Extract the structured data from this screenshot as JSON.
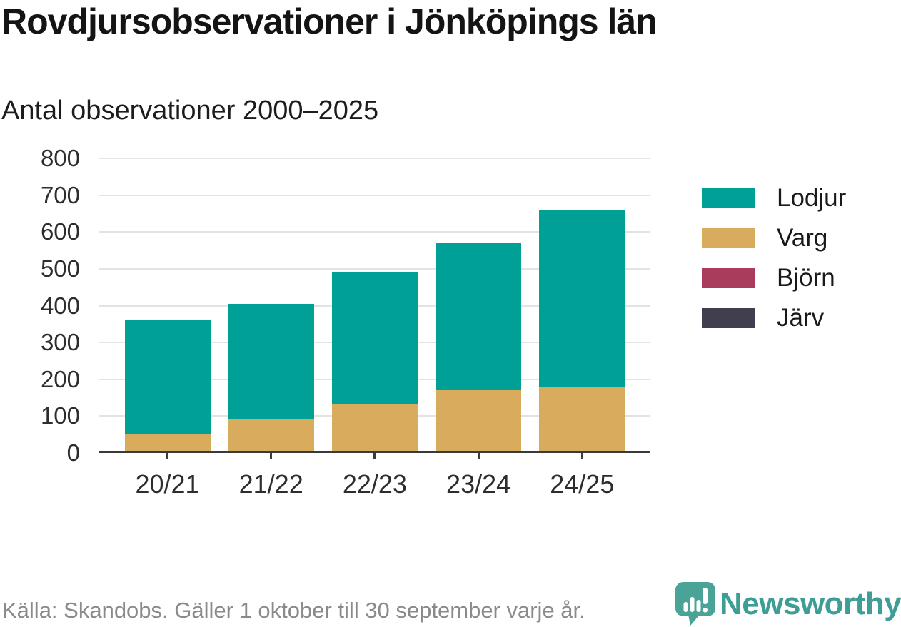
{
  "header": {
    "title": "Rovdjursobservationer i Jönköpings län",
    "subtitle": "Antal observationer 2000–2025"
  },
  "chart_data": {
    "type": "bar",
    "stacked": true,
    "title": "Rovdjursobservationer i Jönköpings län",
    "subtitle": "Antal observationer 2000–2025",
    "xlabel": "",
    "ylabel": "Antal observationer",
    "categories": [
      "20/21",
      "21/22",
      "22/23",
      "23/24",
      "24/25"
    ],
    "series": [
      {
        "name": "Lodjur",
        "color": "#00a096",
        "values": [
          310,
          315,
          360,
          400,
          480
        ]
      },
      {
        "name": "Varg",
        "color": "#d9ab5c",
        "values": [
          45,
          85,
          125,
          165,
          175
        ]
      },
      {
        "name": "Björn",
        "color": "#a93c5d",
        "values": [
          0,
          0,
          0,
          0,
          0
        ]
      },
      {
        "name": "Järv",
        "color": "#413e50",
        "values": [
          0,
          0,
          0,
          0,
          0
        ]
      }
    ],
    "stack_order": [
      "Varg",
      "Björn",
      "Järv",
      "Lodjur"
    ],
    "totals": [
      355,
      400,
      485,
      565,
      655
    ],
    "ylim": [
      0,
      800
    ],
    "yticks": [
      0,
      100,
      200,
      300,
      400,
      500,
      600,
      700,
      800
    ],
    "grid": true,
    "legend_position": "right"
  },
  "legend": {
    "entries": [
      "Lodjur",
      "Varg",
      "Björn",
      "Järv"
    ]
  },
  "footer": {
    "source": "Källa: Skandobs. Gäller 1 oktober till 30 september varje år.",
    "brand": "Newsworthy"
  },
  "colors": {
    "lodjur": "#00a096",
    "varg": "#d9ab5c",
    "bjorn": "#a93c5d",
    "jarv": "#413e50",
    "gridline": "#e3e3e3",
    "axis": "#3a3a3a",
    "text_dark": "#141414",
    "text_axis": "#2d2d2d",
    "text_source": "#8a8a8a",
    "brand_teal": "#3e9d94",
    "brand_icon_teal": "#4aa396"
  }
}
